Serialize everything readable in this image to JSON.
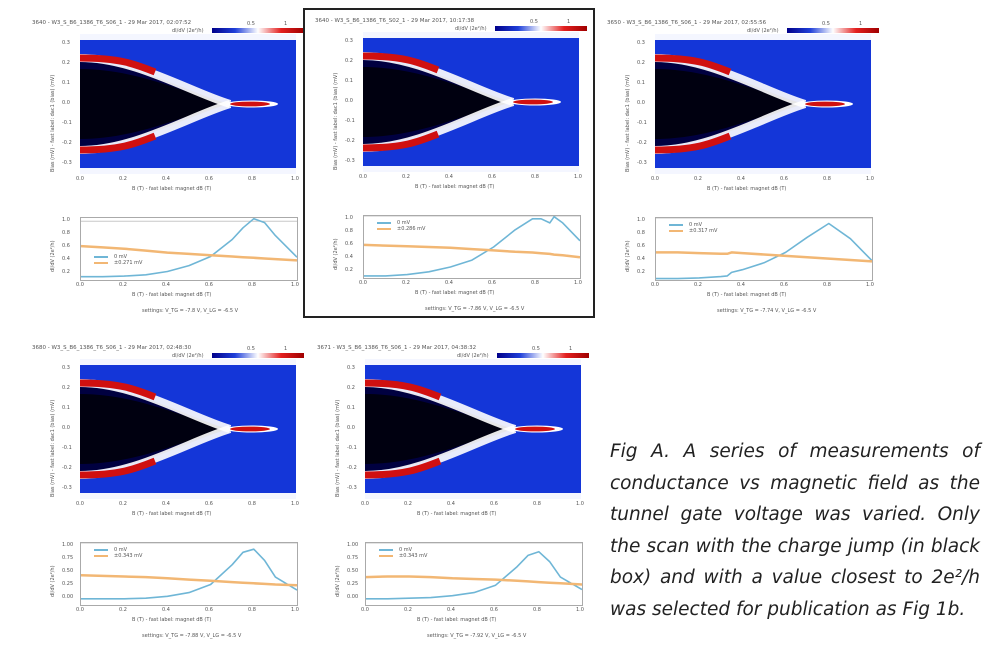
{
  "figure": {
    "caption": "Fig A. A series of measurements of conductance vs magnetic field as the tunnel gate voltage was varied. Only the scan with the charge jump (in black box) and with a value closest to 2e²/h was selected for publication as Fig 1b.",
    "colors": {
      "low": "#00008a",
      "mid": "#ffffff",
      "high": "#d01010",
      "blue_bg": "#1436d8",
      "zero_bias_line": "#6fb6d6",
      "finite_bias_line": "#f2b774",
      "box": "#222222"
    },
    "colorbar": {
      "title": "dI/dV (2e²/h)",
      "ticks": [
        "0.5",
        "1"
      ]
    },
    "heatmap_axes": {
      "xlabel": "B (T) - fast label: magnet dB (T)",
      "ylabel": "Bias (mV) - fast label: dac1 (bias) (mV)",
      "xticks": [
        "0.0",
        "0.2",
        "0.4",
        "0.6",
        "0.8",
        "1.0"
      ],
      "yticks": [
        "0.3",
        "0.2",
        "0.1",
        "0.0",
        "-0.1",
        "-0.2",
        "-0.3"
      ]
    },
    "linecut_axes": {
      "xlabel": "B (T) - fast label: magnet dB (T)",
      "ylabel": "dI/dV (2e²/h)",
      "xticks": [
        "0.0",
        "0.2",
        "0.4",
        "0.6",
        "0.8",
        "1.0"
      ]
    },
    "panels": [
      {
        "id": "panel-1",
        "title": "3640 - W3_S_B6_1386_T6_S06_1 - 29 Mar 2017, 02:07:52",
        "boxed": false,
        "legend": [
          "0 mV",
          "±0.271 mV"
        ],
        "yticks": [
          "1.0",
          "0.8",
          "0.6",
          "0.4",
          "0.2"
        ],
        "settings": "settings: V_TG = -7.8 V, V_LG = -6.5 V"
      },
      {
        "id": "panel-2",
        "title": "3640 - W3_S_B6_1386_T6_S02_1 - 29 Mar 2017, 10:17:38",
        "boxed": true,
        "legend": [
          "0 mV",
          "±0.286 mV"
        ],
        "yticks": [
          "1.0",
          "0.8",
          "0.6",
          "0.4",
          "0.2"
        ],
        "settings": "settings: V_TG = -7.86 V, V_LG = -6.5 V"
      },
      {
        "id": "panel-3",
        "title": "3650 - W3_S_B6_1386_T6_S06_1 - 29 Mar 2017, 02:55:56",
        "boxed": false,
        "legend": [
          "0 mV",
          "±0.317 mV"
        ],
        "yticks": [
          "1.0",
          "0.8",
          "0.6",
          "0.4",
          "0.2"
        ],
        "settings": "settings: V_TG = -7.74 V, V_LG = -6.5 V"
      },
      {
        "id": "panel-4",
        "title": "3680 - W3_S_B6_1386_T6_S06_1 - 29 Mar 2017, 02:48:30",
        "boxed": false,
        "legend": [
          "0 mV",
          "±0.343 mV"
        ],
        "yticks": [
          "1.00",
          "0.75",
          "0.50",
          "0.25",
          "0.00"
        ],
        "settings": "settings: V_TG = -7.88 V, V_LG = -6.5 V"
      },
      {
        "id": "panel-5",
        "title": "3671 - W3_S_B6_1386_T6_S06_1 - 29 Mar 2017, 04:38:32",
        "boxed": false,
        "legend": [
          "0 mV",
          "±0.343 mV"
        ],
        "yticks": [
          "1.00",
          "0.75",
          "0.50",
          "0.25",
          "0.00"
        ],
        "settings": "settings: V_TG = -7.92 V, V_LG = -6.5 V"
      }
    ]
  },
  "chart_data": [
    {
      "type": "line",
      "title": "Panel 1 linecut",
      "xlabel": "B (T)",
      "ylabel": "dI/dV (2e²/h)",
      "xlim": [
        0,
        1
      ],
      "ylim": [
        0.1,
        1.05
      ],
      "x": [
        0,
        0.1,
        0.2,
        0.3,
        0.4,
        0.5,
        0.6,
        0.7,
        0.75,
        0.8,
        0.85,
        0.9,
        1.0
      ],
      "series": [
        {
          "name": "0 mV",
          "values": [
            0.15,
            0.15,
            0.16,
            0.18,
            0.23,
            0.32,
            0.46,
            0.72,
            0.9,
            1.04,
            0.98,
            0.78,
            0.45
          ]
        },
        {
          "name": "±0.271 mV",
          "values": [
            0.62,
            0.6,
            0.58,
            0.55,
            0.52,
            0.5,
            0.48,
            0.46,
            0.45,
            0.44,
            0.43,
            0.42,
            0.4
          ]
        }
      ]
    },
    {
      "type": "line",
      "title": "Panel 2 linecut (boxed)",
      "xlabel": "B (T)",
      "ylabel": "dI/dV (2e²/h)",
      "xlim": [
        0,
        1
      ],
      "ylim": [
        0.1,
        1.0
      ],
      "x": [
        0,
        0.1,
        0.2,
        0.3,
        0.4,
        0.5,
        0.6,
        0.7,
        0.78,
        0.82,
        0.86,
        0.88,
        0.92,
        1.0
      ],
      "series": [
        {
          "name": "0 mV",
          "values": [
            0.13,
            0.13,
            0.15,
            0.19,
            0.26,
            0.36,
            0.55,
            0.8,
            0.96,
            0.96,
            0.9,
            0.99,
            0.9,
            0.64
          ]
        },
        {
          "name": "±0.286 mV",
          "values": [
            0.58,
            0.57,
            0.56,
            0.55,
            0.54,
            0.52,
            0.5,
            0.48,
            0.47,
            0.46,
            0.45,
            0.44,
            0.43,
            0.4
          ]
        }
      ]
    },
    {
      "type": "line",
      "title": "Panel 3 linecut",
      "xlabel": "B (T)",
      "ylabel": "dI/dV (2e²/h)",
      "xlim": [
        0,
        1
      ],
      "ylim": [
        0.1,
        1.0
      ],
      "x": [
        0,
        0.1,
        0.2,
        0.3,
        0.33,
        0.35,
        0.4,
        0.5,
        0.6,
        0.7,
        0.8,
        0.9,
        1.0
      ],
      "series": [
        {
          "name": "0 mV",
          "values": [
            0.12,
            0.12,
            0.13,
            0.15,
            0.16,
            0.21,
            0.25,
            0.35,
            0.5,
            0.72,
            0.92,
            0.7,
            0.38
          ]
        },
        {
          "name": "±0.317 mV",
          "values": [
            0.5,
            0.5,
            0.49,
            0.48,
            0.48,
            0.5,
            0.49,
            0.47,
            0.45,
            0.43,
            0.41,
            0.39,
            0.37
          ]
        }
      ]
    },
    {
      "type": "line",
      "title": "Panel 4 linecut",
      "xlabel": "B (T)",
      "ylabel": "dI/dV (2e²/h)",
      "xlim": [
        0,
        1
      ],
      "ylim": [
        0.0,
        1.0
      ],
      "x": [
        0,
        0.1,
        0.2,
        0.3,
        0.4,
        0.5,
        0.6,
        0.7,
        0.75,
        0.8,
        0.85,
        0.9,
        1.0
      ],
      "series": [
        {
          "name": "0 mV",
          "values": [
            0.1,
            0.1,
            0.1,
            0.11,
            0.14,
            0.2,
            0.33,
            0.65,
            0.85,
            0.9,
            0.72,
            0.45,
            0.24
          ]
        },
        {
          "name": "±0.343 mV",
          "values": [
            0.48,
            0.47,
            0.46,
            0.45,
            0.43,
            0.41,
            0.39,
            0.37,
            0.36,
            0.35,
            0.34,
            0.33,
            0.32
          ]
        }
      ]
    },
    {
      "type": "line",
      "title": "Panel 5 linecut",
      "xlabel": "B (T)",
      "ylabel": "dI/dV (2e²/h)",
      "xlim": [
        0,
        1
      ],
      "ylim": [
        0.0,
        1.0
      ],
      "x": [
        0,
        0.1,
        0.2,
        0.3,
        0.4,
        0.5,
        0.6,
        0.7,
        0.75,
        0.8,
        0.85,
        0.9,
        1.0
      ],
      "series": [
        {
          "name": "0 mV",
          "values": [
            0.1,
            0.1,
            0.11,
            0.12,
            0.15,
            0.2,
            0.32,
            0.62,
            0.8,
            0.86,
            0.7,
            0.45,
            0.25
          ]
        },
        {
          "name": "±0.343 mV",
          "values": [
            0.45,
            0.46,
            0.46,
            0.45,
            0.43,
            0.42,
            0.41,
            0.39,
            0.38,
            0.37,
            0.36,
            0.35,
            0.33
          ]
        }
      ]
    }
  ]
}
